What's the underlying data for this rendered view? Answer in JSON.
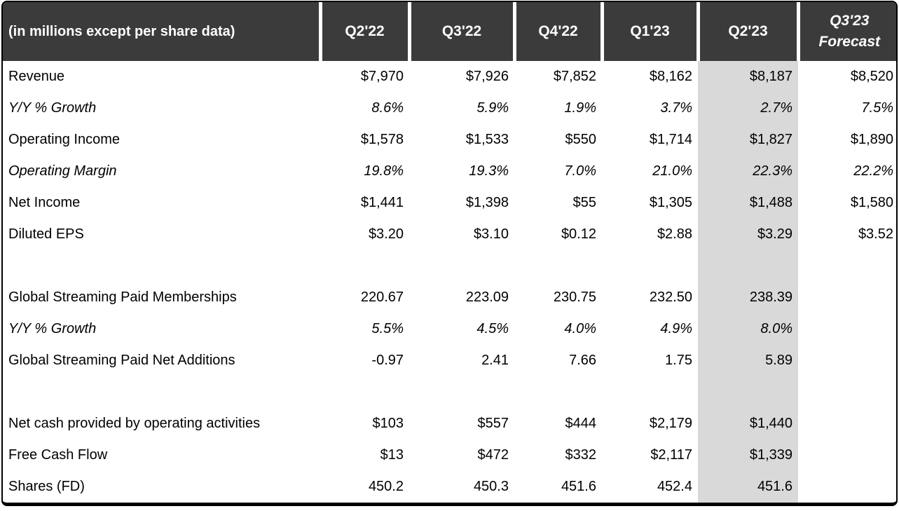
{
  "table": {
    "header": {
      "label": "(in millions except per share data)",
      "columns": [
        "Q2'22",
        "Q3'22",
        "Q4'22",
        "Q1'23",
        "Q2'23",
        "Q3'23 Forecast"
      ],
      "highlight_column_index": 4
    },
    "colors": {
      "header_bg": "#3b3b3b",
      "header_text": "#ffffff",
      "highlight_bg": "#d9d9d9",
      "body_text": "#000000",
      "border": "#000000"
    },
    "rows": [
      {
        "label": "Revenue",
        "italic": false,
        "spacer": false,
        "values": [
          "$7,970",
          "$7,926",
          "$7,852",
          "$8,162",
          "$8,187",
          "$8,520"
        ]
      },
      {
        "label": "Y/Y % Growth",
        "italic": true,
        "spacer": false,
        "values": [
          "8.6%",
          "5.9%",
          "1.9%",
          "3.7%",
          "2.7%",
          "7.5%"
        ]
      },
      {
        "label": "Operating Income",
        "italic": false,
        "spacer": false,
        "values": [
          "$1,578",
          "$1,533",
          "$550",
          "$1,714",
          "$1,827",
          "$1,890"
        ]
      },
      {
        "label": "Operating Margin",
        "italic": true,
        "spacer": false,
        "values": [
          "19.8%",
          "19.3%",
          "7.0%",
          "21.0%",
          "22.3%",
          "22.2%"
        ]
      },
      {
        "label": "Net Income",
        "italic": false,
        "spacer": false,
        "values": [
          "$1,441",
          "$1,398",
          "$55",
          "$1,305",
          "$1,488",
          "$1,580"
        ]
      },
      {
        "label": "Diluted EPS",
        "italic": false,
        "spacer": false,
        "values": [
          "$3.20",
          "$3.10",
          "$0.12",
          "$2.88",
          "$3.29",
          "$3.52"
        ]
      },
      {
        "label": "",
        "italic": false,
        "spacer": true,
        "values": [
          "",
          "",
          "",
          "",
          "",
          ""
        ]
      },
      {
        "label": "Global Streaming Paid Memberships",
        "italic": false,
        "spacer": false,
        "values": [
          "220.67",
          "223.09",
          "230.75",
          "232.50",
          "238.39",
          ""
        ]
      },
      {
        "label": "Y/Y % Growth",
        "italic": true,
        "spacer": false,
        "values": [
          "5.5%",
          "4.5%",
          "4.0%",
          "4.9%",
          "8.0%",
          ""
        ]
      },
      {
        "label": "Global Streaming Paid Net Additions",
        "italic": false,
        "spacer": false,
        "values": [
          "-0.97",
          "2.41",
          "7.66",
          "1.75",
          "5.89",
          ""
        ]
      },
      {
        "label": "",
        "italic": false,
        "spacer": true,
        "values": [
          "",
          "",
          "",
          "",
          "",
          ""
        ]
      },
      {
        "label": "Net cash provided by operating activities",
        "italic": false,
        "spacer": false,
        "values": [
          "$103",
          "$557",
          "$444",
          "$2,179",
          "$1,440",
          ""
        ]
      },
      {
        "label": "Free Cash Flow",
        "italic": false,
        "spacer": false,
        "values": [
          "$13",
          "$472",
          "$332",
          "$2,117",
          "$1,339",
          ""
        ]
      },
      {
        "label": "Shares (FD)",
        "italic": false,
        "spacer": false,
        "values": [
          "450.2",
          "450.3",
          "451.6",
          "452.4",
          "451.6",
          ""
        ]
      }
    ]
  },
  "chart_data": {
    "type": "table",
    "title": "(in millions except per share data)",
    "columns": [
      "Q2'22",
      "Q3'22",
      "Q4'22",
      "Q1'23",
      "Q2'23",
      "Q3'23 Forecast"
    ],
    "highlighted_column": "Q2'23",
    "rows": [
      {
        "metric": "Revenue",
        "values": [
          "$7,970",
          "$7,926",
          "$7,852",
          "$8,162",
          "$8,187",
          "$8,520"
        ]
      },
      {
        "metric": "Y/Y % Growth",
        "values": [
          "8.6%",
          "5.9%",
          "1.9%",
          "3.7%",
          "2.7%",
          "7.5%"
        ]
      },
      {
        "metric": "Operating Income",
        "values": [
          "$1,578",
          "$1,533",
          "$550",
          "$1,714",
          "$1,827",
          "$1,890"
        ]
      },
      {
        "metric": "Operating Margin",
        "values": [
          "19.8%",
          "19.3%",
          "7.0%",
          "21.0%",
          "22.3%",
          "22.2%"
        ]
      },
      {
        "metric": "Net Income",
        "values": [
          "$1,441",
          "$1,398",
          "$55",
          "$1,305",
          "$1,488",
          "$1,580"
        ]
      },
      {
        "metric": "Diluted EPS",
        "values": [
          "$3.20",
          "$3.10",
          "$0.12",
          "$2.88",
          "$3.29",
          "$3.52"
        ]
      },
      {
        "metric": "Global Streaming Paid Memberships",
        "values": [
          "220.67",
          "223.09",
          "230.75",
          "232.50",
          "238.39",
          null
        ]
      },
      {
        "metric": "Y/Y % Growth (Memberships)",
        "values": [
          "5.5%",
          "4.5%",
          "4.0%",
          "4.9%",
          "8.0%",
          null
        ]
      },
      {
        "metric": "Global Streaming Paid Net Additions",
        "values": [
          "-0.97",
          "2.41",
          "7.66",
          "1.75",
          "5.89",
          null
        ]
      },
      {
        "metric": "Net cash provided by operating activities",
        "values": [
          "$103",
          "$557",
          "$444",
          "$2,179",
          "$1,440",
          null
        ]
      },
      {
        "metric": "Free Cash Flow",
        "values": [
          "$13",
          "$472",
          "$332",
          "$2,117",
          "$1,339",
          null
        ]
      },
      {
        "metric": "Shares (FD)",
        "values": [
          "450.2",
          "450.3",
          "451.6",
          "452.4",
          "451.6",
          null
        ]
      }
    ]
  }
}
